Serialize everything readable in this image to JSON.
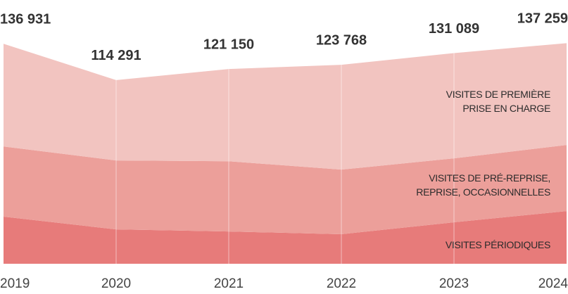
{
  "chart_data": {
    "type": "stacked_area",
    "categories": [
      "2019",
      "2020",
      "2021",
      "2022",
      "2023",
      "2024"
    ],
    "series": [
      {
        "name": "VISITES PÉRIODIQUES",
        "color": "#e77b7a",
        "values": [
          29300,
          21400,
          20100,
          18400,
          25800,
          32800
        ]
      },
      {
        "name": "VISITES DE PRÉ-REPRISE,\nREPRISE, OCCASIONNELLES",
        "color": "#ec9f9a",
        "values": [
          43700,
          42900,
          43700,
          40200,
          39800,
          41100
        ]
      },
      {
        "name": "VISITES DE PREMIÈRE\nPRISE EN CHARGE",
        "color": "#f2c4c0",
        "values": [
          63900,
          50000,
          57400,
          65200,
          65500,
          63400
        ]
      }
    ],
    "totals": {
      "values": [
        136931,
        114291,
        121150,
        123768,
        131089,
        137259
      ],
      "value_labels": [
        "136 931",
        "114 291",
        "121 150",
        "123 768",
        "131 089",
        "137 259"
      ]
    },
    "ylim": [
      0,
      137000
    ]
  }
}
